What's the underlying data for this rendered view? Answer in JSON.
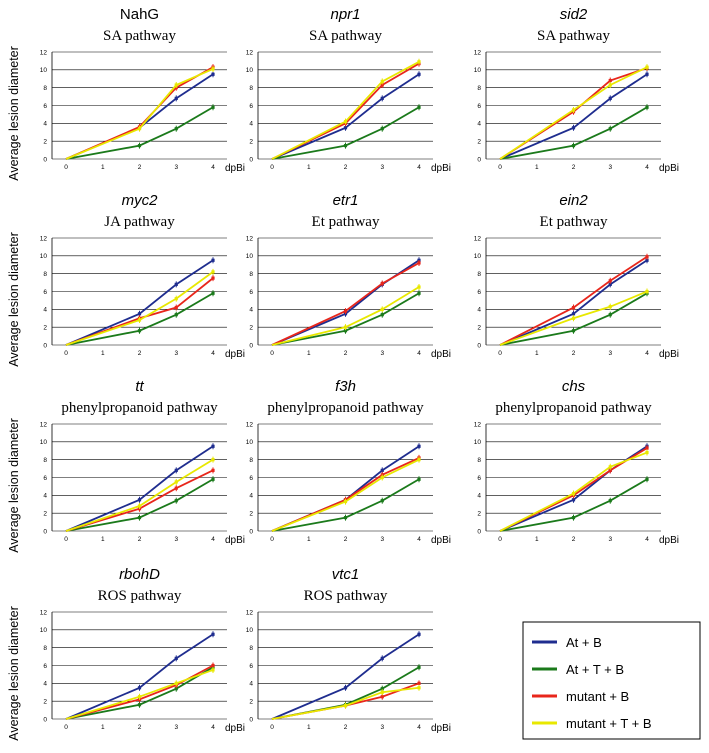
{
  "figure": {
    "ylabel": "Average lesion diameter",
    "xunit": "dpBi"
  },
  "legend": {
    "items": [
      {
        "label": "At + B",
        "color": "#1f2d8f"
      },
      {
        "label": "At + T + B",
        "color": "#1b7a1b"
      },
      {
        "label": "mutant + B",
        "color": "#e8261b"
      },
      {
        "label": "mutant + T + B",
        "color": "#e8e800"
      }
    ]
  },
  "chart_data": [
    {
      "type": "line",
      "title": "NahG",
      "title_italic": false,
      "subtitle": "SA pathway",
      "x": [
        0,
        2,
        3,
        4
      ],
      "xticks": [
        0,
        1,
        2,
        3,
        4
      ],
      "ylim": [
        0,
        12
      ],
      "yticks": [
        0,
        2,
        4,
        6,
        8,
        10,
        12
      ],
      "series": [
        {
          "name": "At + B",
          "values": [
            0,
            3.5,
            6.8,
            9.5
          ]
        },
        {
          "name": "At + T + B",
          "values": [
            0,
            1.5,
            3.4,
            5.8
          ]
        },
        {
          "name": "mutant + B",
          "values": [
            0,
            3.6,
            8.0,
            10.3
          ]
        },
        {
          "name": "mutant + T + B",
          "values": [
            0,
            3.4,
            8.3,
            10.1
          ]
        }
      ]
    },
    {
      "type": "line",
      "title": "npr1",
      "title_italic": true,
      "subtitle": "SA pathway",
      "x": [
        0,
        2,
        3,
        4
      ],
      "xticks": [
        0,
        1,
        2,
        3,
        4
      ],
      "ylim": [
        0,
        12
      ],
      "yticks": [
        0,
        2,
        4,
        6,
        8,
        10,
        12
      ],
      "series": [
        {
          "name": "At + B",
          "values": [
            0,
            3.5,
            6.8,
            9.5
          ]
        },
        {
          "name": "At + T + B",
          "values": [
            0,
            1.5,
            3.4,
            5.8
          ]
        },
        {
          "name": "mutant + B",
          "values": [
            0,
            4.0,
            8.3,
            10.7
          ]
        },
        {
          "name": "mutant + T + B",
          "values": [
            0,
            4.2,
            8.7,
            10.9
          ]
        }
      ]
    },
    {
      "type": "line",
      "title": "sid2",
      "title_italic": true,
      "subtitle": "SA pathway",
      "x": [
        0,
        2,
        3,
        4
      ],
      "xticks": [
        0,
        1,
        2,
        3,
        4
      ],
      "ylim": [
        0,
        12
      ],
      "yticks": [
        0,
        2,
        4,
        6,
        8,
        10,
        12
      ],
      "series": [
        {
          "name": "At + B",
          "values": [
            0,
            3.5,
            6.8,
            9.5
          ]
        },
        {
          "name": "At + T + B",
          "values": [
            0,
            1.5,
            3.4,
            5.8
          ]
        },
        {
          "name": "mutant + B",
          "values": [
            0,
            5.3,
            8.8,
            10.2
          ]
        },
        {
          "name": "mutant + T + B",
          "values": [
            0,
            5.5,
            8.3,
            10.3
          ]
        }
      ]
    },
    {
      "type": "line",
      "title": "myc2",
      "title_italic": true,
      "subtitle": "JA pathway",
      "x": [
        0,
        2,
        3,
        4
      ],
      "xticks": [
        0,
        1,
        2,
        3,
        4
      ],
      "ylim": [
        0,
        12
      ],
      "yticks": [
        0,
        2,
        4,
        6,
        8,
        10,
        12
      ],
      "series": [
        {
          "name": "At + B",
          "values": [
            0,
            3.5,
            6.8,
            9.5
          ]
        },
        {
          "name": "At + T + B",
          "values": [
            0,
            1.6,
            3.4,
            5.8
          ]
        },
        {
          "name": "mutant + B",
          "values": [
            0,
            3.0,
            4.2,
            7.5
          ]
        },
        {
          "name": "mutant + T + B",
          "values": [
            0,
            2.8,
            5.2,
            8.2
          ]
        }
      ]
    },
    {
      "type": "line",
      "title": "etr1",
      "title_italic": true,
      "subtitle": "Et pathway",
      "x": [
        0,
        2,
        3,
        4
      ],
      "xticks": [
        0,
        1,
        2,
        3,
        4
      ],
      "ylim": [
        0,
        12
      ],
      "yticks": [
        0,
        2,
        4,
        6,
        8,
        10,
        12
      ],
      "series": [
        {
          "name": "At + B",
          "values": [
            0,
            3.5,
            6.8,
            9.5
          ]
        },
        {
          "name": "At + T + B",
          "values": [
            0,
            1.6,
            3.4,
            5.8
          ]
        },
        {
          "name": "mutant + B",
          "values": [
            0,
            3.8,
            6.9,
            9.2
          ]
        },
        {
          "name": "mutant + T + B",
          "values": [
            0,
            2.0,
            4.0,
            6.5
          ]
        }
      ]
    },
    {
      "type": "line",
      "title": "ein2",
      "title_italic": true,
      "subtitle": "Et pathway",
      "x": [
        0,
        2,
        3,
        4
      ],
      "xticks": [
        0,
        1,
        2,
        3,
        4
      ],
      "ylim": [
        0,
        12
      ],
      "yticks": [
        0,
        2,
        4,
        6,
        8,
        10,
        12
      ],
      "series": [
        {
          "name": "At + B",
          "values": [
            0,
            3.5,
            6.8,
            9.5
          ]
        },
        {
          "name": "At + T + B",
          "values": [
            0,
            1.6,
            3.4,
            5.8
          ]
        },
        {
          "name": "mutant + B",
          "values": [
            0,
            4.2,
            7.2,
            9.9
          ]
        },
        {
          "name": "mutant + T + B",
          "values": [
            0,
            3.0,
            4.3,
            6.0
          ]
        }
      ]
    },
    {
      "type": "line",
      "title": "tt",
      "title_italic": true,
      "subtitle": "phenylpropanoid pathway",
      "x": [
        0,
        2,
        3,
        4
      ],
      "xticks": [
        0,
        1,
        2,
        3,
        4
      ],
      "ylim": [
        0,
        12
      ],
      "yticks": [
        0,
        2,
        4,
        6,
        8,
        10,
        12
      ],
      "series": [
        {
          "name": "At + B",
          "values": [
            0,
            3.5,
            6.8,
            9.5
          ]
        },
        {
          "name": "At + T + B",
          "values": [
            0,
            1.5,
            3.4,
            5.8
          ]
        },
        {
          "name": "mutant + B",
          "values": [
            0,
            2.5,
            4.8,
            6.8
          ]
        },
        {
          "name": "mutant + T + B",
          "values": [
            0,
            2.8,
            5.5,
            8.0
          ]
        }
      ]
    },
    {
      "type": "line",
      "title": "f3h",
      "title_italic": true,
      "subtitle": "phenylpropanoid pathway",
      "x": [
        0,
        2,
        3,
        4
      ],
      "xticks": [
        0,
        1,
        2,
        3,
        4
      ],
      "ylim": [
        0,
        12
      ],
      "yticks": [
        0,
        2,
        4,
        6,
        8,
        10,
        12
      ],
      "series": [
        {
          "name": "At + B",
          "values": [
            0,
            3.5,
            6.8,
            9.5
          ]
        },
        {
          "name": "At + T + B",
          "values": [
            0,
            1.5,
            3.4,
            5.8
          ]
        },
        {
          "name": "mutant + B",
          "values": [
            0,
            3.5,
            6.3,
            8.2
          ]
        },
        {
          "name": "mutant + T + B",
          "values": [
            0,
            3.3,
            6.0,
            8.0
          ]
        }
      ]
    },
    {
      "type": "line",
      "title": "chs",
      "title_italic": true,
      "subtitle": "phenylpropanoid pathway",
      "x": [
        0,
        2,
        3,
        4
      ],
      "xticks": [
        0,
        1,
        2,
        3,
        4
      ],
      "ylim": [
        0,
        12
      ],
      "yticks": [
        0,
        2,
        4,
        6,
        8,
        10,
        12
      ],
      "series": [
        {
          "name": "At + B",
          "values": [
            0,
            3.5,
            6.8,
            9.5
          ]
        },
        {
          "name": "At + T + B",
          "values": [
            0,
            1.5,
            3.4,
            5.8
          ]
        },
        {
          "name": "mutant + B",
          "values": [
            0,
            4.0,
            6.8,
            9.3
          ]
        },
        {
          "name": "mutant + T + B",
          "values": [
            0,
            4.2,
            7.2,
            8.8
          ]
        }
      ]
    },
    {
      "type": "line",
      "title": "rbohD",
      "title_italic": true,
      "subtitle": "ROS pathway",
      "x": [
        0,
        2,
        3,
        4
      ],
      "xticks": [
        0,
        1,
        2,
        3,
        4
      ],
      "ylim": [
        0,
        12
      ],
      "yticks": [
        0,
        2,
        4,
        6,
        8,
        10,
        12
      ],
      "series": [
        {
          "name": "At + B",
          "values": [
            0,
            3.5,
            6.8,
            9.5
          ]
        },
        {
          "name": "At + T + B",
          "values": [
            0,
            1.6,
            3.4,
            5.8
          ]
        },
        {
          "name": "mutant + B",
          "values": [
            0,
            2.2,
            3.8,
            6.0
          ]
        },
        {
          "name": "mutant + T + B",
          "values": [
            0,
            2.5,
            4.0,
            5.5
          ]
        }
      ]
    },
    {
      "type": "line",
      "title": "vtc1",
      "title_italic": true,
      "subtitle": "ROS pathway",
      "x": [
        0,
        2,
        3,
        4
      ],
      "xticks": [
        0,
        1,
        2,
        3,
        4
      ],
      "ylim": [
        0,
        12
      ],
      "yticks": [
        0,
        2,
        4,
        6,
        8,
        10,
        12
      ],
      "series": [
        {
          "name": "At + B",
          "values": [
            0,
            3.5,
            6.8,
            9.5
          ]
        },
        {
          "name": "At + T + B",
          "values": [
            0,
            1.6,
            3.4,
            5.8
          ]
        },
        {
          "name": "mutant + B",
          "values": [
            0,
            1.5,
            2.5,
            4.0
          ]
        },
        {
          "name": "mutant + T + B",
          "values": [
            0,
            1.5,
            3.0,
            3.5
          ]
        }
      ]
    }
  ]
}
